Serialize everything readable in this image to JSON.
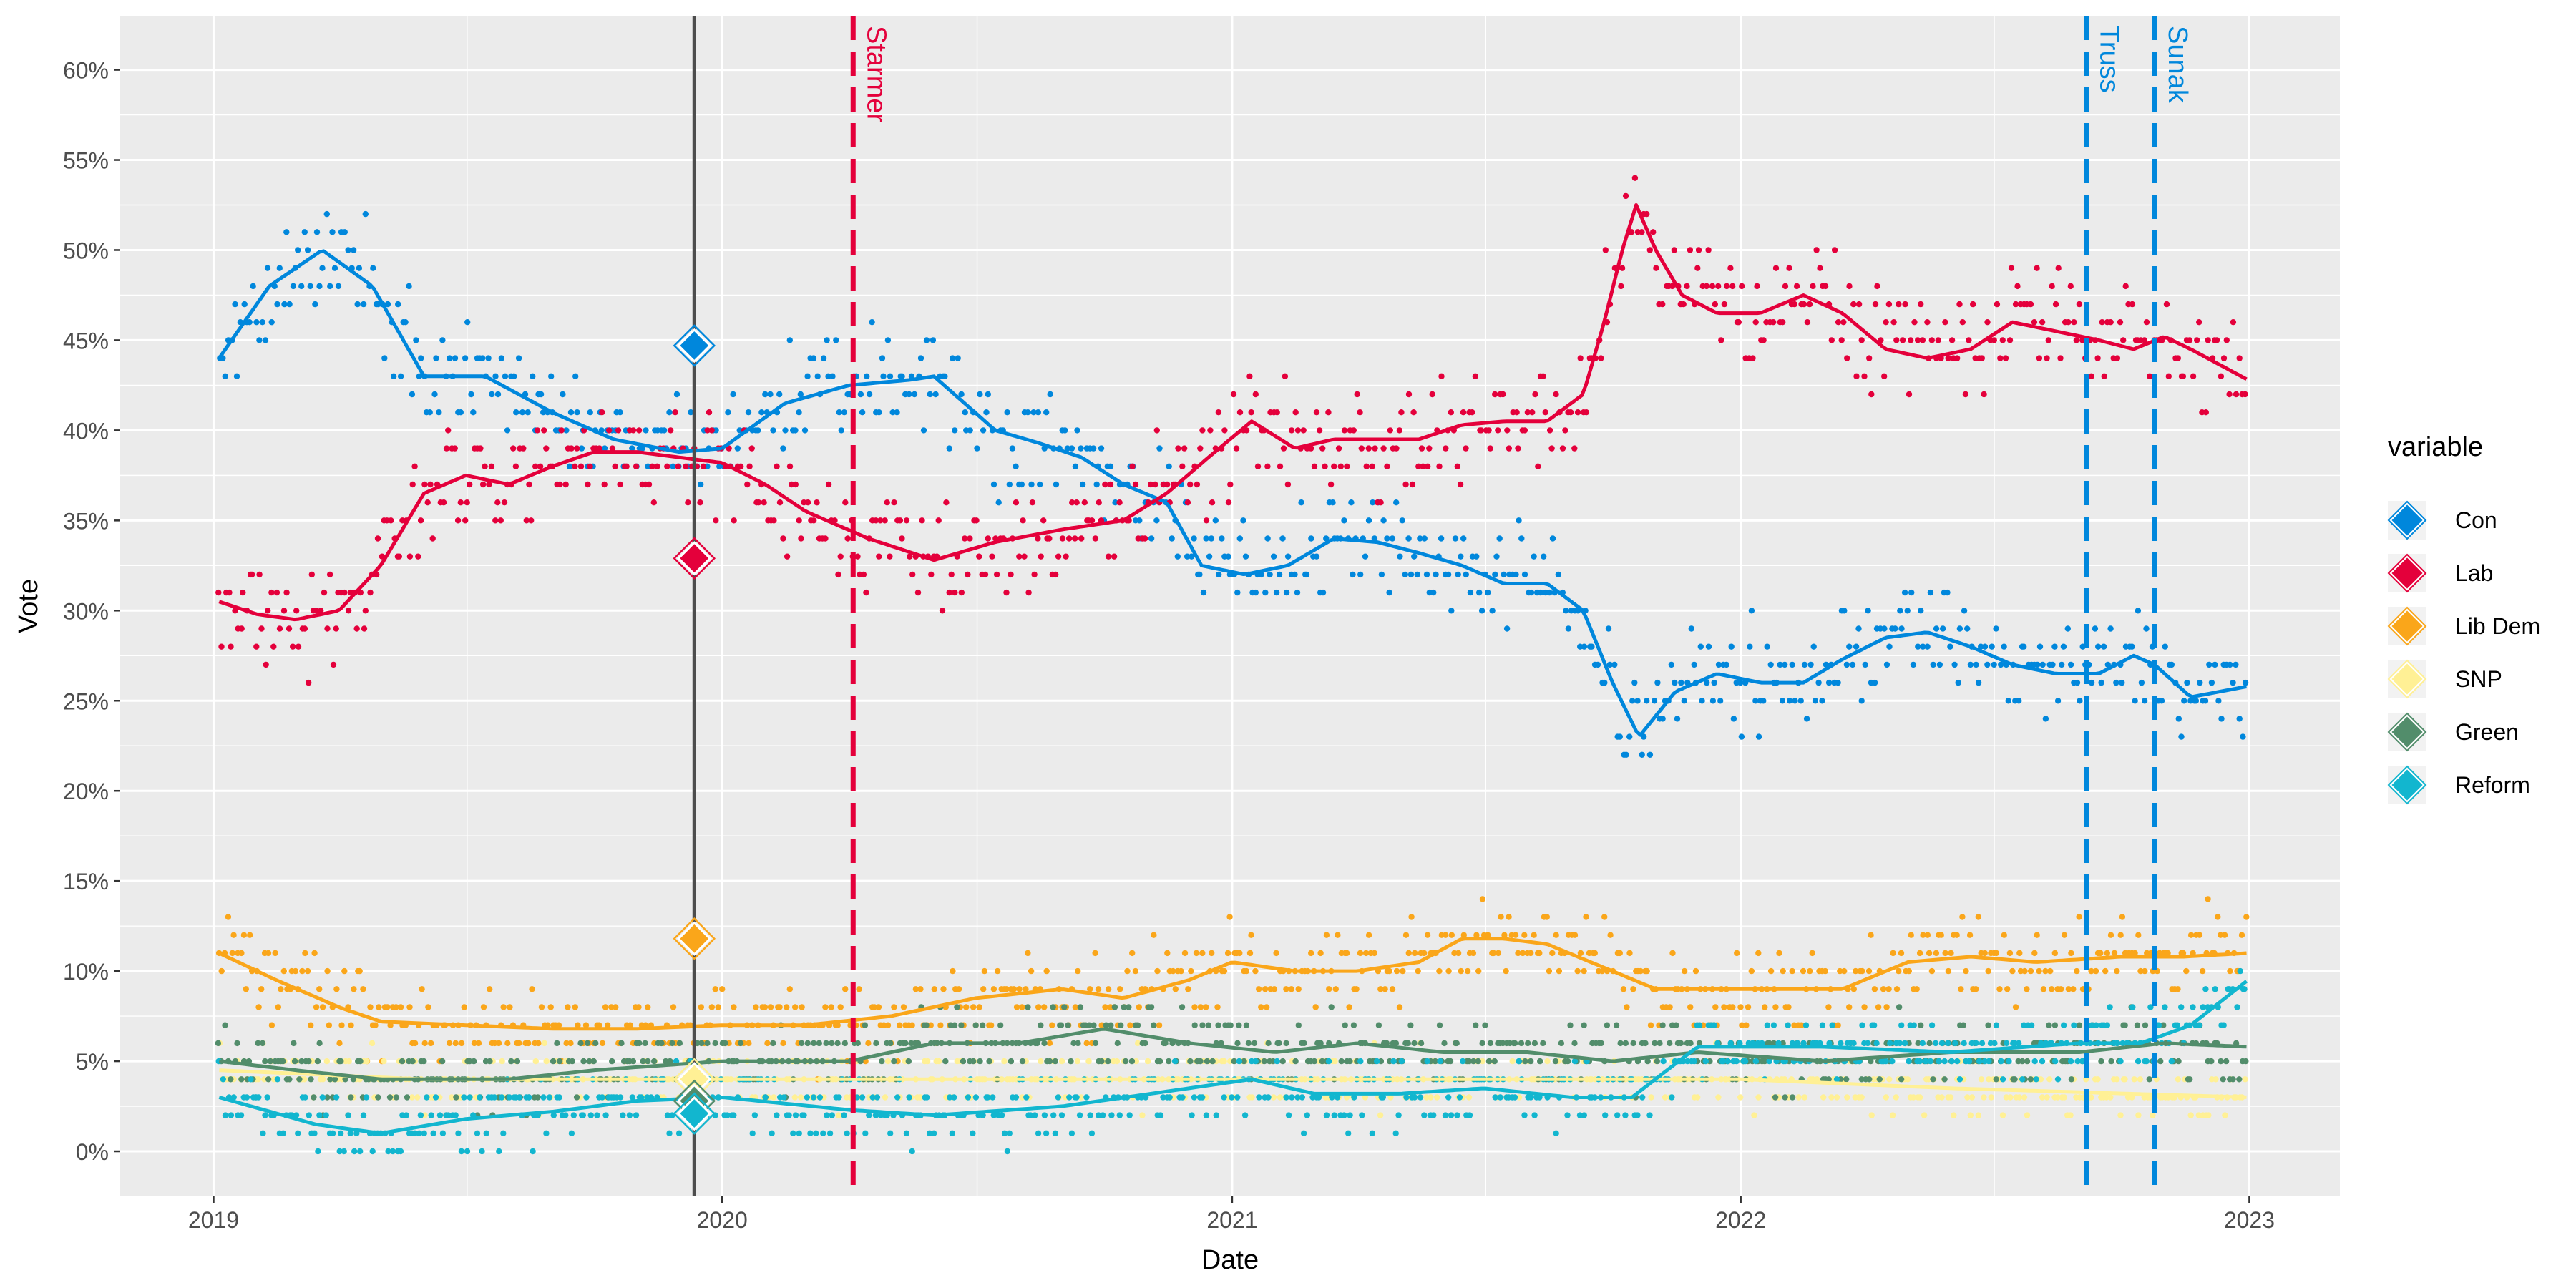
{
  "chart_data": {
    "type": "scatter",
    "title": "",
    "xlabel": "Date",
    "ylabel": "Vote",
    "xlim": [
      "2018-10-26",
      "2023-03-07"
    ],
    "ylim": [
      -2.5,
      63
    ],
    "x_ticks": [
      "2019",
      "2020",
      "2021",
      "2022",
      "2023"
    ],
    "y_ticks": [
      "0%",
      "5%",
      "10%",
      "15%",
      "20%",
      "25%",
      "30%",
      "35%",
      "40%",
      "45%",
      "50%",
      "55%",
      "60%"
    ],
    "grid": true,
    "legend": {
      "title": "variable",
      "position": "right"
    },
    "series": [
      {
        "name": "Con",
        "color": "#0087DC",
        "smooth": [
          [
            "2019-01-05",
            44
          ],
          [
            "2019-02-10",
            48
          ],
          [
            "2019-03-20",
            50
          ],
          [
            "2019-04-25",
            48
          ],
          [
            "2019-06-01",
            43
          ],
          [
            "2019-07-15",
            43
          ],
          [
            "2019-09-01",
            41
          ],
          [
            "2019-10-15",
            39.5
          ],
          [
            "2019-12-01",
            38.8
          ],
          [
            "2020-01-01",
            39
          ],
          [
            "2020-02-15",
            41.5
          ],
          [
            "2020-04-01",
            42.5
          ],
          [
            "2020-05-15",
            42.8
          ],
          [
            "2020-06-01",
            43
          ],
          [
            "2020-07-15",
            40
          ],
          [
            "2020-08-15",
            39.3
          ],
          [
            "2020-09-15",
            38.5
          ],
          [
            "2020-10-15",
            37
          ],
          [
            "2020-11-15",
            36
          ],
          [
            "2020-12-10",
            32.5
          ],
          [
            "2021-01-10",
            32
          ],
          [
            "2021-02-10",
            32.5
          ],
          [
            "2021-03-15",
            34
          ],
          [
            "2021-04-15",
            33.8
          ],
          [
            "2021-05-15",
            33.2
          ],
          [
            "2021-06-15",
            32.5
          ],
          [
            "2021-07-15",
            31.5
          ],
          [
            "2021-08-15",
            31.5
          ],
          [
            "2021-09-10",
            30
          ],
          [
            "2021-10-01",
            26
          ],
          [
            "2021-10-20",
            23
          ],
          [
            "2021-11-15",
            25.5
          ],
          [
            "2021-12-15",
            26.5
          ],
          [
            "2022-01-15",
            26
          ],
          [
            "2022-02-15",
            26
          ],
          [
            "2022-03-15",
            27.3
          ],
          [
            "2022-04-15",
            28.5
          ],
          [
            "2022-05-15",
            28.8
          ],
          [
            "2022-06-15",
            28
          ],
          [
            "2022-07-15",
            27
          ],
          [
            "2022-08-15",
            26.5
          ],
          [
            "2022-09-15",
            26.5
          ],
          [
            "2022-10-10",
            27.5
          ],
          [
            "2022-10-25",
            27
          ],
          [
            "2022-11-20",
            25.2
          ],
          [
            "2022-12-31",
            25.8
          ]
        ],
        "spread": 2.8,
        "noise_days": 0.4
      },
      {
        "name": "Lab",
        "color": "#E4003B",
        "smooth": [
          [
            "2019-01-05",
            30.5
          ],
          [
            "2019-02-01",
            29.8
          ],
          [
            "2019-03-01",
            29.5
          ],
          [
            "2019-04-01",
            30
          ],
          [
            "2019-05-01",
            32.5
          ],
          [
            "2019-06-01",
            36.5
          ],
          [
            "2019-07-01",
            37.5
          ],
          [
            "2019-08-01",
            37
          ],
          [
            "2019-09-01",
            38
          ],
          [
            "2019-10-01",
            38.8
          ],
          [
            "2019-11-01",
            38.8
          ],
          [
            "2019-12-01",
            38.5
          ],
          [
            "2020-01-01",
            38.2
          ],
          [
            "2020-02-01",
            37
          ],
          [
            "2020-03-01",
            35.5
          ],
          [
            "2020-04-15",
            34
          ],
          [
            "2020-06-01",
            32.8
          ],
          [
            "2020-07-15",
            33.8
          ],
          [
            "2020-09-01",
            34.5
          ],
          [
            "2020-10-15",
            35
          ],
          [
            "2020-11-15",
            36.5
          ],
          [
            "2020-12-15",
            38.5
          ],
          [
            "2021-01-15",
            40.5
          ],
          [
            "2021-02-15",
            39
          ],
          [
            "2021-03-15",
            39.5
          ],
          [
            "2021-04-15",
            39.5
          ],
          [
            "2021-05-15",
            39.5
          ],
          [
            "2021-06-15",
            40.3
          ],
          [
            "2021-07-15",
            40.5
          ],
          [
            "2021-08-15",
            40.5
          ],
          [
            "2021-09-10",
            42
          ],
          [
            "2021-09-25",
            46
          ],
          [
            "2021-10-08",
            50
          ],
          [
            "2021-10-18",
            52.5
          ],
          [
            "2021-11-01",
            50
          ],
          [
            "2021-11-20",
            47.5
          ],
          [
            "2021-12-15",
            46.5
          ],
          [
            "2022-01-15",
            46.5
          ],
          [
            "2022-02-15",
            47.5
          ],
          [
            "2022-03-15",
            46.5
          ],
          [
            "2022-04-15",
            44.5
          ],
          [
            "2022-05-15",
            44
          ],
          [
            "2022-06-15",
            44.5
          ],
          [
            "2022-07-15",
            46
          ],
          [
            "2022-08-15",
            45.5
          ],
          [
            "2022-09-15",
            45
          ],
          [
            "2022-10-10",
            44.5
          ],
          [
            "2022-11-01",
            45.2
          ],
          [
            "2022-11-20",
            44.5
          ],
          [
            "2022-12-31",
            42.8
          ]
        ],
        "spread": 2.8,
        "noise_days": 0.4
      },
      {
        "name": "Lib Dem",
        "color": "#FAA61A",
        "smooth": [
          [
            "2019-01-05",
            11
          ],
          [
            "2019-02-15",
            9.5
          ],
          [
            "2019-04-01",
            8
          ],
          [
            "2019-05-01",
            7.2
          ],
          [
            "2019-07-01",
            7
          ],
          [
            "2019-09-01",
            6.8
          ],
          [
            "2019-11-01",
            6.8
          ],
          [
            "2020-01-01",
            7
          ],
          [
            "2020-03-01",
            7
          ],
          [
            "2020-05-01",
            7.5
          ],
          [
            "2020-07-01",
            8.5
          ],
          [
            "2020-09-01",
            9
          ],
          [
            "2020-10-15",
            8.5
          ],
          [
            "2020-12-01",
            9.5
          ],
          [
            "2021-01-01",
            10.5
          ],
          [
            "2021-02-15",
            10
          ],
          [
            "2021-04-01",
            10
          ],
          [
            "2021-05-15",
            10.5
          ],
          [
            "2021-06-15",
            11.8
          ],
          [
            "2021-07-15",
            11.8
          ],
          [
            "2021-08-15",
            11.5
          ],
          [
            "2021-10-01",
            10
          ],
          [
            "2021-11-01",
            9
          ],
          [
            "2021-12-15",
            9
          ],
          [
            "2022-02-01",
            9
          ],
          [
            "2022-03-15",
            9
          ],
          [
            "2022-05-01",
            10.5
          ],
          [
            "2022-06-15",
            10.8
          ],
          [
            "2022-08-01",
            10.5
          ],
          [
            "2022-10-01",
            10.8
          ],
          [
            "2022-11-15",
            10.8
          ],
          [
            "2022-12-31",
            11
          ]
        ],
        "spread": 2.2,
        "noise_days": 0.5
      },
      {
        "name": "SNP",
        "color": "#FFF095",
        "smooth": [
          [
            "2019-01-05",
            4.5
          ],
          [
            "2019-06-01",
            4
          ],
          [
            "2019-12-01",
            4
          ],
          [
            "2020-06-01",
            4
          ],
          [
            "2021-01-01",
            4
          ],
          [
            "2021-06-01",
            4
          ],
          [
            "2022-01-01",
            4
          ],
          [
            "2022-06-01",
            3.5
          ],
          [
            "2022-12-31",
            3
          ]
        ],
        "spread": 1.4,
        "noise_days": 0.5
      },
      {
        "name": "Green",
        "color": "#528D6B",
        "smooth": [
          [
            "2019-01-05",
            5
          ],
          [
            "2019-03-01",
            4.5
          ],
          [
            "2019-05-01",
            4
          ],
          [
            "2019-08-01",
            4
          ],
          [
            "2019-10-01",
            4.5
          ],
          [
            "2020-01-01",
            5
          ],
          [
            "2020-04-01",
            5
          ],
          [
            "2020-06-01",
            6
          ],
          [
            "2020-08-01",
            6
          ],
          [
            "2020-10-01",
            6.8
          ],
          [
            "2020-12-01",
            6
          ],
          [
            "2021-02-01",
            5.5
          ],
          [
            "2021-04-01",
            6
          ],
          [
            "2021-06-01",
            5.5
          ],
          [
            "2021-08-01",
            5.5
          ],
          [
            "2021-10-01",
            5
          ],
          [
            "2021-12-01",
            5.5
          ],
          [
            "2022-03-01",
            5
          ],
          [
            "2022-06-01",
            5.5
          ],
          [
            "2022-09-01",
            5.5
          ],
          [
            "2022-11-01",
            6
          ],
          [
            "2022-12-31",
            5.8
          ]
        ],
        "spread": 1.8,
        "noise_days": 0.5
      },
      {
        "name": "Reform",
        "color": "#12B6CF",
        "smooth": [
          [
            "2019-01-05",
            3
          ],
          [
            "2019-03-15",
            1.5
          ],
          [
            "2019-05-01",
            1
          ],
          [
            "2019-07-01",
            1.8
          ],
          [
            "2019-09-01",
            2.2
          ],
          [
            "2019-11-01",
            2.8
          ],
          [
            "2020-01-01",
            3
          ],
          [
            "2020-04-01",
            2.3
          ],
          [
            "2020-06-01",
            2
          ],
          [
            "2020-09-01",
            2.5
          ],
          [
            "2020-12-01",
            3.5
          ],
          [
            "2021-01-15",
            4
          ],
          [
            "2021-03-01",
            3.2
          ],
          [
            "2021-05-01",
            3.2
          ],
          [
            "2021-07-01",
            3.5
          ],
          [
            "2021-09-01",
            3
          ],
          [
            "2021-10-15",
            3
          ],
          [
            "2021-12-01",
            5.8
          ],
          [
            "2022-03-01",
            5.8
          ],
          [
            "2022-06-01",
            5.5
          ],
          [
            "2022-09-01",
            6
          ],
          [
            "2022-10-15",
            6
          ],
          [
            "2022-11-20",
            7
          ],
          [
            "2022-12-31",
            9.5
          ]
        ],
        "spread": 1.8,
        "noise_days": 0.5
      }
    ],
    "election_result": {
      "date": "2019-12-12",
      "values": {
        "Con": 44.7,
        "Lab": 32.9,
        "Lib Dem": 11.8,
        "SNP": 4.0,
        "Green": 2.8,
        "Reform": 2.1
      }
    },
    "events": [
      {
        "date": "2019-12-12",
        "label": "",
        "color": "#4D4D4D",
        "style": "solid"
      },
      {
        "date": "2020-04-04",
        "label": "Starmer",
        "color": "#E4003B",
        "style": "dashed"
      },
      {
        "date": "2022-09-06",
        "label": "Truss",
        "color": "#0087DC",
        "style": "dashed"
      },
      {
        "date": "2022-10-25",
        "label": "Sunak",
        "color": "#0087DC",
        "style": "dashed"
      }
    ]
  }
}
